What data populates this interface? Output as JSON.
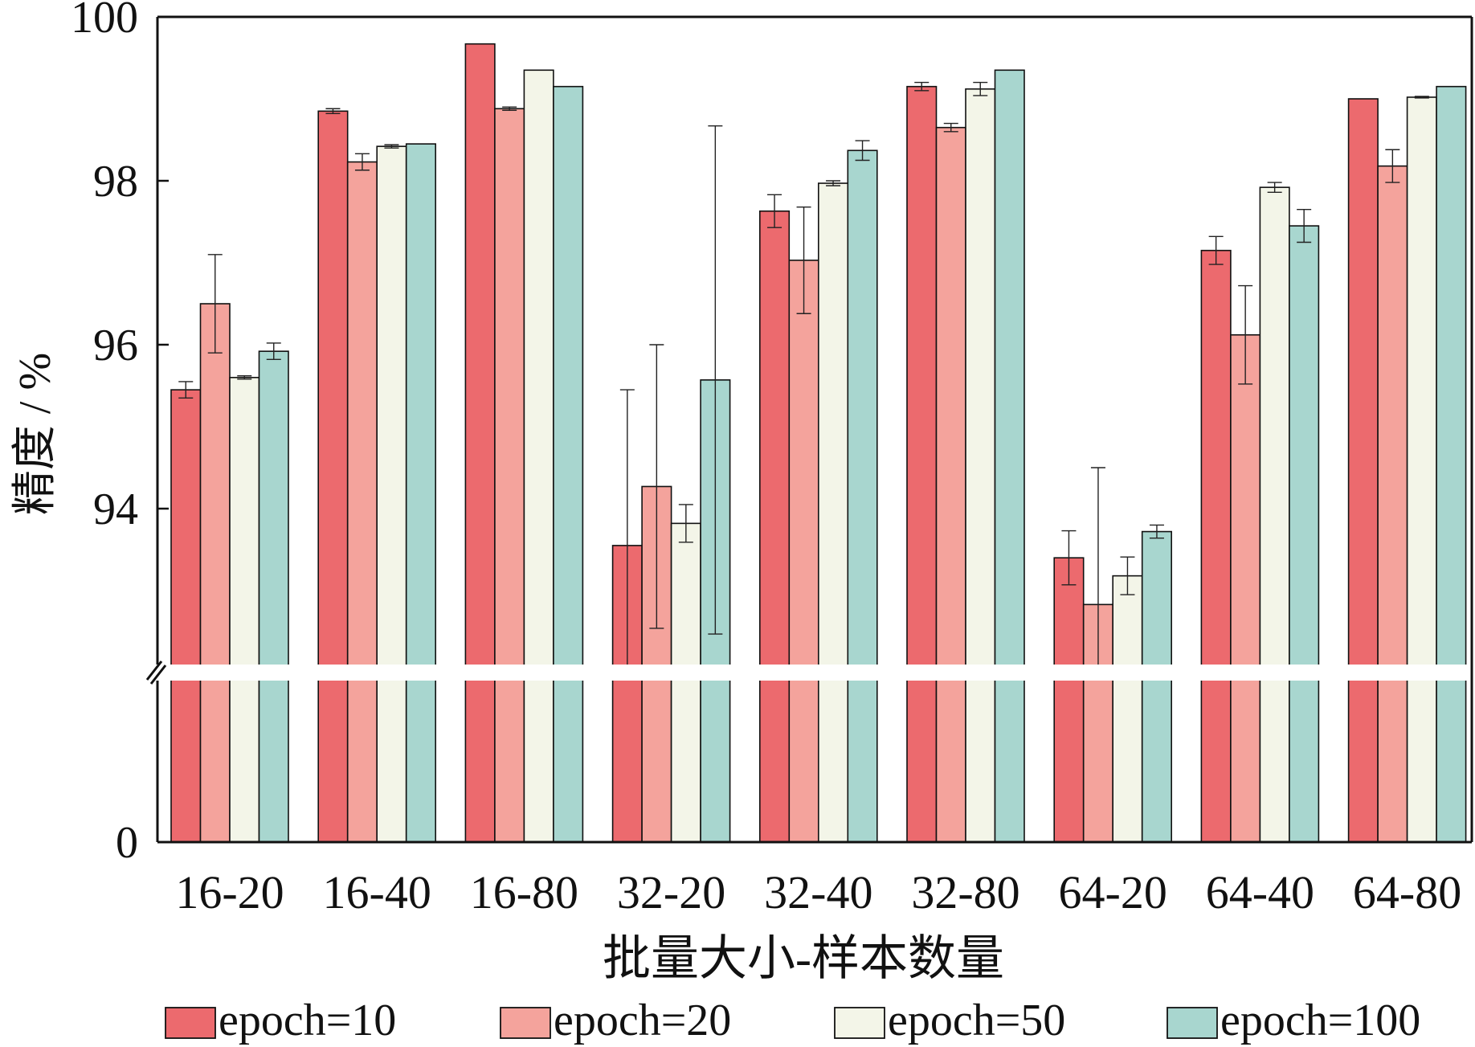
{
  "chart_data": {
    "type": "bar",
    "xlabel": "批量大小-样本数量",
    "ylabel": "精度 / %",
    "y_axis_break": {
      "from": 0,
      "to": 92
    },
    "ylim": [
      0,
      100
    ],
    "yticks": [
      "0",
      "94",
      "96",
      "98",
      "100"
    ],
    "categories": [
      "16-20",
      "16-40",
      "16-80",
      "32-20",
      "32-40",
      "32-80",
      "64-20",
      "64-40",
      "64-80"
    ],
    "legend_position": "bottom",
    "series": [
      {
        "name": "epoch=10",
        "color": "#ec6a6e",
        "values": [
          95.45,
          98.85,
          99.67,
          93.55,
          97.63,
          99.15,
          93.4,
          97.15,
          99.0
        ],
        "errors": [
          0.1,
          0.03,
          0.0,
          1.9,
          0.2,
          0.05,
          0.33,
          0.17,
          0.0
        ]
      },
      {
        "name": "epoch=20",
        "color": "#f4a39c",
        "values": [
          96.5,
          98.23,
          98.88,
          94.27,
          97.03,
          98.65,
          92.83,
          96.12,
          98.18
        ],
        "errors": [
          0.6,
          0.1,
          0.02,
          1.73,
          0.65,
          0.05,
          1.67,
          0.6,
          0.2
        ]
      },
      {
        "name": "epoch=50",
        "color": "#f3f5e8",
        "values": [
          95.6,
          98.42,
          99.35,
          93.82,
          97.97,
          99.12,
          93.18,
          97.92,
          99.02
        ],
        "errors": [
          0.02,
          0.02,
          0.0,
          0.23,
          0.03,
          0.08,
          0.23,
          0.06,
          0.01
        ]
      },
      {
        "name": "epoch=100",
        "color": "#a8d6cf",
        "values": [
          95.92,
          98.45,
          99.15,
          95.57,
          98.37,
          99.35,
          93.72,
          97.45,
          99.15
        ],
        "errors": [
          0.1,
          0.0,
          0.0,
          3.1,
          0.12,
          0.0,
          0.08,
          0.2,
          0.0
        ]
      }
    ]
  }
}
